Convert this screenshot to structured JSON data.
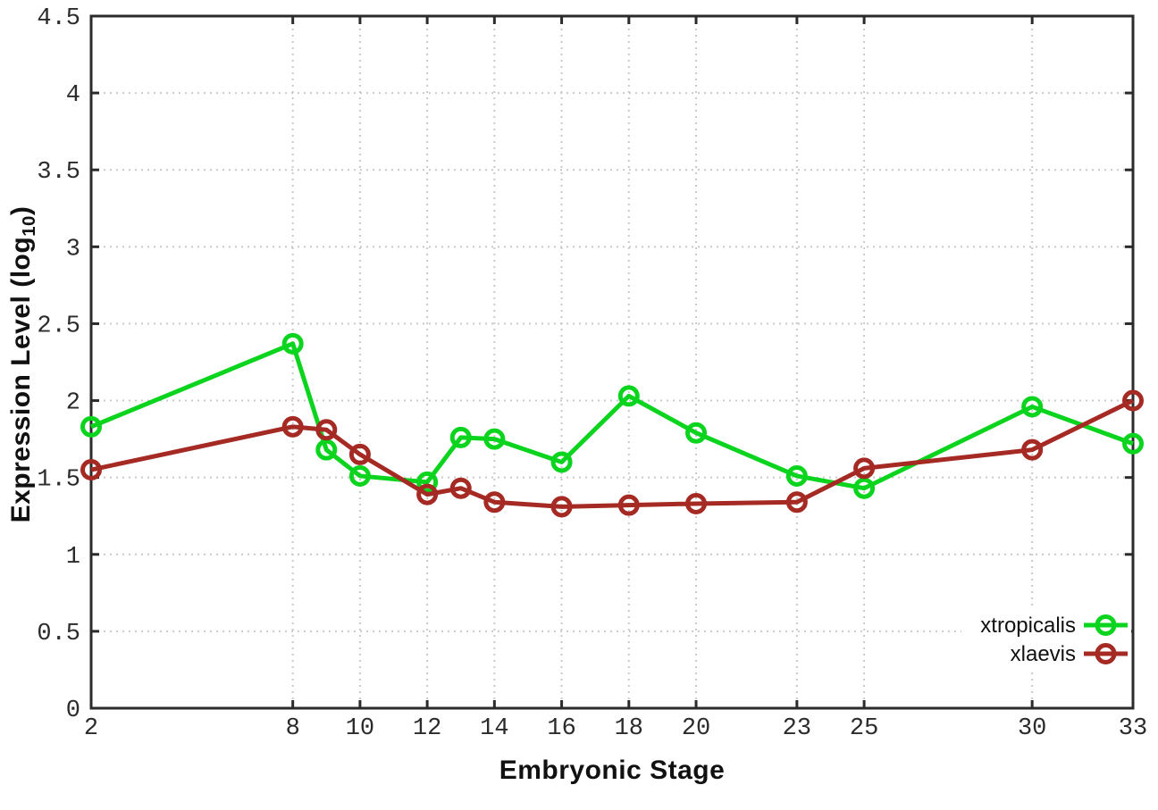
{
  "chart_data": {
    "type": "line",
    "title": "",
    "xlabel": "Embryonic Stage",
    "ylabel": {
      "prefix": "Expression Level (log",
      "sub": "10",
      "suffix": ")"
    },
    "xlim": [
      2,
      33
    ],
    "ylim": [
      0,
      4.5
    ],
    "x_ticks": [
      2,
      8,
      10,
      12,
      14,
      16,
      18,
      20,
      23,
      25,
      30,
      33
    ],
    "y_ticks": [
      0,
      0.5,
      1,
      1.5,
      2,
      2.5,
      3,
      3.5,
      4,
      4.5
    ],
    "grid": true,
    "legend_position": "bottom-right",
    "marker": "open-circle",
    "x": [
      2,
      8,
      9,
      10,
      12,
      13,
      14,
      16,
      18,
      20,
      23,
      25,
      30,
      33
    ],
    "series": [
      {
        "name": "xtropicalis",
        "color": "#0bd41e",
        "values": [
          1.83,
          2.37,
          1.68,
          1.51,
          1.47,
          1.76,
          1.75,
          1.6,
          2.03,
          1.79,
          1.51,
          1.43,
          1.96,
          1.72
        ]
      },
      {
        "name": "xlaevis",
        "color": "#a52a23",
        "values": [
          1.55,
          1.83,
          1.81,
          1.65,
          1.39,
          1.43,
          1.34,
          1.31,
          1.32,
          1.33,
          1.34,
          1.56,
          1.68,
          2.0
        ]
      }
    ],
    "colors": {
      "grid": "#c9c9c9",
      "border": "#2b2b2b",
      "tick_text": "#2b2b2b",
      "background": "#ffffff"
    }
  }
}
